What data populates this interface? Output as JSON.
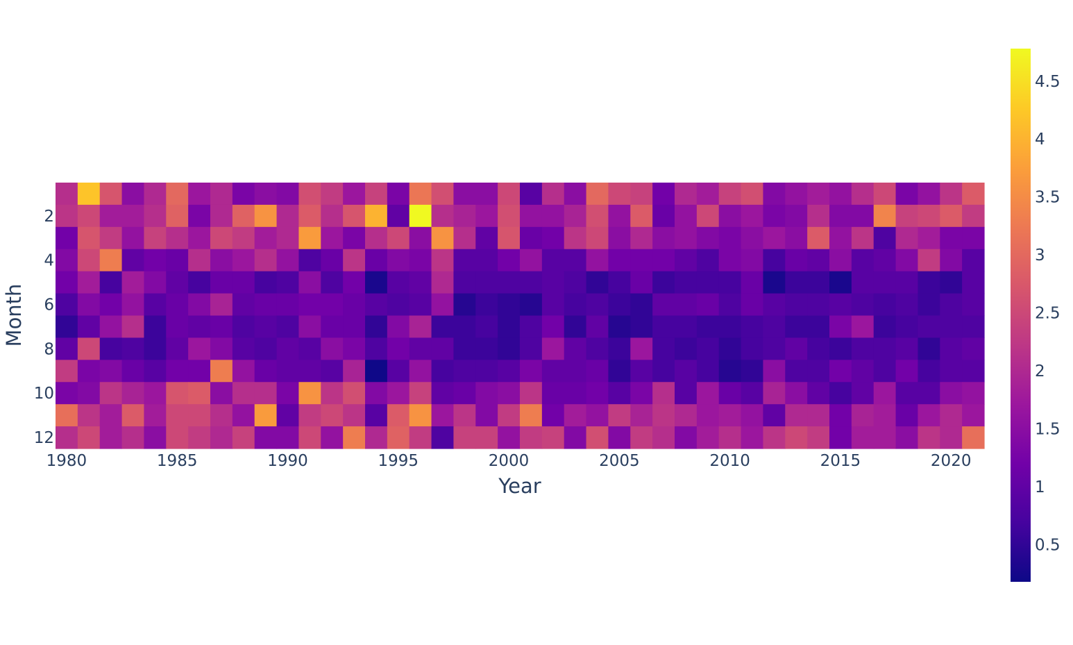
{
  "chart_data": {
    "type": "heatmap",
    "title": "",
    "xlabel": "Year",
    "ylabel": "Month",
    "x": [
      1980,
      1981,
      1982,
      1983,
      1984,
      1985,
      1986,
      1987,
      1988,
      1989,
      1990,
      1991,
      1992,
      1993,
      1994,
      1995,
      1996,
      1997,
      1998,
      1999,
      2000,
      2001,
      2002,
      2003,
      2004,
      2005,
      2006,
      2007,
      2008,
      2009,
      2010,
      2011,
      2012,
      2013,
      2014,
      2015,
      2016,
      2017,
      2018,
      2019,
      2020,
      2021
    ],
    "y": [
      1,
      2,
      3,
      4,
      5,
      6,
      7,
      8,
      9,
      10,
      11,
      12
    ],
    "x_ticks": [
      {
        "value": 1980,
        "label": "1980"
      },
      {
        "value": 1985,
        "label": "1985"
      },
      {
        "value": 1990,
        "label": "1990"
      },
      {
        "value": 1995,
        "label": "1995"
      },
      {
        "value": 2000,
        "label": "2000"
      },
      {
        "value": 2005,
        "label": "2005"
      },
      {
        "value": 2010,
        "label": "2010"
      },
      {
        "value": 2015,
        "label": "2015"
      },
      {
        "value": 2020,
        "label": "2020"
      }
    ],
    "y_ticks": [
      {
        "value": 2,
        "label": "2"
      },
      {
        "value": 4,
        "label": "4"
      },
      {
        "value": 6,
        "label": "6"
      },
      {
        "value": 8,
        "label": "8"
      },
      {
        "value": 10,
        "label": "10"
      },
      {
        "value": 12,
        "label": "12"
      }
    ],
    "y_reversed": true,
    "colorscale": "plasma",
    "colorscale_stops": [
      "#0d0887",
      "#46039f",
      "#7201a8",
      "#9c179e",
      "#bd3786",
      "#d8576b",
      "#ed7953",
      "#fb9f3a",
      "#fdca26",
      "#f0f921"
    ],
    "zmin": 0.18,
    "zmax": 4.78,
    "colorbar_ticks": [
      {
        "value": 0.5,
        "label": "0.5"
      },
      {
        "value": 1,
        "label": "1"
      },
      {
        "value": 1.5,
        "label": "1.5"
      },
      {
        "value": 2,
        "label": "2"
      },
      {
        "value": 2.5,
        "label": "2.5"
      },
      {
        "value": 3,
        "label": "3"
      },
      {
        "value": 3.5,
        "label": "3.5"
      },
      {
        "value": 4,
        "label": "4"
      },
      {
        "value": 4.5,
        "label": "4.5"
      }
    ],
    "z": [
      [
        2.1,
        4.2,
        2.7,
        1.5,
        2.0,
        3.0,
        1.7,
        2.0,
        1.3,
        1.5,
        1.4,
        2.6,
        2.3,
        1.7,
        2.4,
        1.3,
        3.2,
        2.6,
        1.5,
        1.5,
        2.5,
        0.9,
        2.1,
        1.5,
        3.0,
        2.5,
        2.4,
        1.2,
        2.0,
        1.8,
        2.4,
        2.6,
        1.4,
        1.6,
        1.8,
        1.6,
        2.1,
        2.5,
        1.3,
        1.6,
        2.2,
        2.8
      ],
      [
        2.2,
        2.5,
        1.8,
        1.8,
        2.1,
        2.9,
        1.3,
        2.0,
        2.9,
        3.6,
        2.0,
        2.8,
        2.1,
        2.7,
        4.0,
        1.0,
        4.78,
        2.1,
        1.9,
        1.7,
        2.6,
        1.6,
        1.6,
        1.9,
        2.6,
        1.6,
        2.8,
        1.1,
        1.6,
        2.5,
        1.5,
        1.7,
        1.3,
        1.4,
        2.1,
        1.4,
        1.4,
        3.4,
        2.4,
        2.5,
        2.8,
        2.3
      ],
      [
        1.2,
        2.7,
        2.3,
        1.6,
        2.4,
        2.1,
        1.7,
        2.5,
        2.3,
        1.8,
        2.0,
        3.7,
        1.7,
        1.3,
        2.1,
        2.5,
        1.5,
        3.6,
        2.1,
        1.0,
        2.7,
        1.1,
        1.2,
        2.2,
        2.5,
        1.5,
        2.0,
        1.5,
        1.6,
        1.4,
        1.3,
        1.5,
        1.7,
        1.5,
        2.8,
        1.6,
        2.2,
        0.8,
        2.0,
        1.8,
        1.3,
        1.3
      ],
      [
        1.4,
        2.5,
        3.3,
        1.0,
        1.2,
        1.1,
        2.1,
        1.5,
        1.7,
        2.1,
        1.6,
        0.8,
        1.1,
        2.2,
        1.1,
        1.4,
        1.3,
        2.2,
        0.9,
        0.9,
        1.2,
        1.6,
        0.9,
        0.9,
        1.6,
        1.2,
        1.2,
        1.2,
        1.0,
        0.8,
        1.3,
        1.4,
        0.7,
        1.1,
        1.0,
        1.5,
        0.9,
        1.0,
        1.4,
        2.3,
        1.4,
        0.9
      ],
      [
        1.2,
        1.8,
        0.7,
        1.8,
        1.4,
        1.0,
        0.7,
        1.1,
        1.1,
        0.7,
        0.8,
        1.5,
        0.8,
        1.2,
        0.3,
        0.9,
        1.0,
        2.0,
        0.8,
        0.8,
        0.8,
        0.8,
        0.9,
        0.8,
        0.5,
        0.7,
        1.1,
        0.6,
        0.7,
        0.7,
        0.7,
        1.1,
        0.3,
        0.6,
        0.6,
        0.3,
        0.9,
        0.9,
        0.9,
        0.6,
        0.5,
        0.9
      ],
      [
        0.8,
        1.4,
        1.2,
        1.6,
        0.9,
        1.1,
        1.4,
        1.9,
        1.0,
        1.1,
        1.1,
        1.2,
        1.2,
        1.1,
        0.9,
        0.8,
        0.9,
        1.6,
        0.4,
        0.6,
        0.5,
        0.4,
        0.9,
        0.7,
        0.8,
        0.6,
        0.5,
        1.0,
        1.0,
        1.1,
        0.8,
        1.1,
        0.9,
        0.8,
        0.8,
        0.9,
        0.8,
        0.7,
        0.8,
        0.6,
        0.8,
        0.9
      ],
      [
        0.5,
        1.0,
        1.6,
        2.1,
        0.6,
        1.1,
        1.0,
        1.1,
        0.8,
        0.9,
        0.8,
        1.5,
        1.1,
        1.1,
        0.5,
        1.4,
        1.9,
        0.6,
        0.6,
        0.7,
        0.5,
        0.8,
        1.2,
        0.5,
        1.0,
        0.4,
        0.5,
        0.7,
        0.7,
        0.6,
        0.6,
        0.7,
        0.8,
        0.6,
        0.6,
        1.3,
        1.7,
        0.6,
        0.7,
        0.8,
        0.8,
        0.8
      ],
      [
        1.0,
        2.5,
        0.7,
        0.8,
        0.6,
        1.0,
        1.7,
        1.4,
        0.9,
        0.8,
        1.0,
        0.9,
        1.5,
        1.3,
        0.8,
        1.2,
        1.0,
        1.0,
        0.6,
        0.6,
        0.5,
        0.8,
        1.7,
        1.0,
        0.8,
        0.6,
        1.7,
        0.7,
        0.6,
        0.7,
        0.5,
        0.7,
        0.8,
        1.0,
        0.7,
        0.6,
        0.8,
        0.8,
        0.9,
        0.5,
        0.9,
        1.0
      ],
      [
        2.3,
        1.3,
        1.4,
        1.1,
        0.9,
        1.2,
        1.2,
        3.3,
        1.6,
        1.1,
        1.0,
        1.0,
        0.9,
        1.9,
        0.2,
        0.9,
        1.6,
        0.7,
        0.8,
        0.8,
        0.9,
        1.3,
        1.0,
        1.0,
        1.1,
        0.5,
        0.9,
        0.7,
        0.9,
        0.7,
        0.4,
        0.5,
        1.5,
        0.8,
        0.8,
        1.2,
        1.0,
        0.8,
        1.2,
        0.7,
        0.9,
        0.9
      ],
      [
        1.3,
        1.4,
        2.2,
        1.9,
        1.7,
        2.7,
        2.8,
        1.5,
        2.1,
        2.1,
        1.3,
        3.6,
        2.2,
        2.6,
        1.4,
        1.7,
        2.4,
        1.0,
        1.1,
        1.4,
        1.5,
        2.2,
        1.1,
        1.1,
        1.2,
        0.9,
        1.3,
        2.1,
        0.9,
        1.7,
        1.1,
        0.9,
        1.9,
        1.5,
        1.0,
        0.7,
        1.0,
        1.7,
        0.9,
        0.9,
        1.5,
        1.6
      ],
      [
        3.1,
        2.2,
        1.8,
        2.8,
        1.8,
        2.5,
        2.5,
        2.1,
        1.6,
        3.7,
        1.0,
        2.3,
        2.5,
        2.2,
        0.9,
        2.8,
        3.6,
        1.7,
        2.2,
        1.4,
        2.3,
        3.3,
        1.2,
        1.8,
        1.6,
        2.3,
        1.9,
        2.2,
        2.0,
        1.7,
        1.8,
        1.6,
        1.0,
        2.0,
        2.0,
        1.2,
        1.9,
        1.8,
        1.1,
        1.7,
        2.0,
        1.7
      ],
      [
        2.1,
        2.5,
        1.8,
        2.1,
        1.5,
        2.5,
        2.3,
        2.0,
        2.4,
        1.4,
        1.4,
        2.5,
        1.6,
        3.3,
        2.0,
        2.9,
        2.3,
        0.8,
        2.4,
        2.4,
        1.6,
        2.3,
        2.4,
        1.4,
        2.6,
        1.4,
        2.3,
        2.1,
        1.4,
        1.8,
        2.1,
        1.7,
        2.2,
        2.5,
        2.3,
        1.2,
        1.8,
        1.8,
        1.5,
        2.2,
        2.0,
        3.1
      ]
    ]
  }
}
